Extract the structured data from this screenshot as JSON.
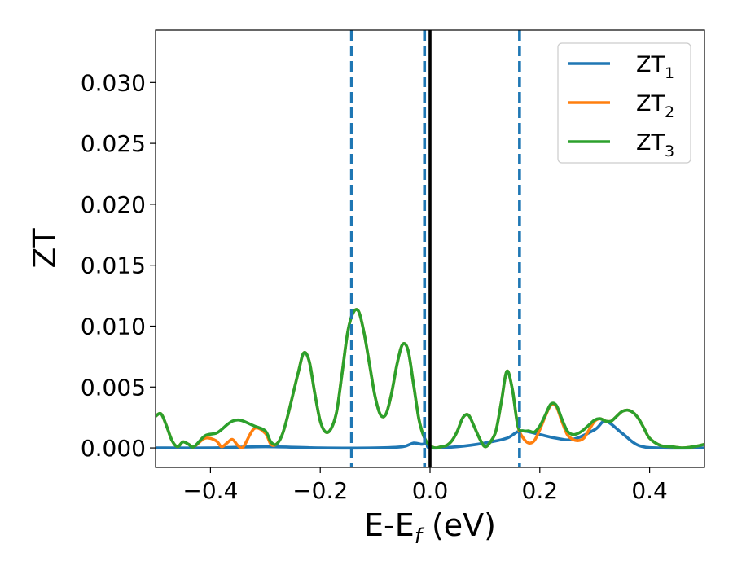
{
  "chart_data": {
    "type": "line",
    "xlabel": {
      "base": "E-E",
      "sub": "f",
      "unit": " (eV)"
    },
    "ylabel": "ZT",
    "xlim": [
      -0.5,
      0.5
    ],
    "ylim": [
      -0.0016,
      0.0343
    ],
    "x_ticks": [
      -0.4,
      -0.2,
      0.0,
      0.2,
      0.4
    ],
    "x_tick_labels": [
      "−0.4",
      "−0.2",
      "0.0",
      "0.2",
      "0.4"
    ],
    "y_ticks": [
      0.0,
      0.005,
      0.01,
      0.015,
      0.02,
      0.025,
      0.03
    ],
    "y_tick_labels": [
      "0.000",
      "0.005",
      "0.010",
      "0.015",
      "0.020",
      "0.025",
      "0.030"
    ],
    "grid": false,
    "legend_position": "top-right",
    "legend_color": "#ffffff",
    "vlines": [
      {
        "x": -0.143,
        "style": "dashed",
        "color": "#1f77b4"
      },
      {
        "x": -0.01,
        "style": "dashed",
        "color": "#1f77b4"
      },
      {
        "x": 0.0,
        "style": "solid",
        "color": "#000000"
      },
      {
        "x": 0.163,
        "style": "dashed",
        "color": "#1f77b4"
      }
    ],
    "series": [
      {
        "name": {
          "base": "ZT",
          "sub": "1"
        },
        "color": "#1f77b4",
        "x": [
          -0.5,
          -0.4,
          -0.3,
          -0.2,
          -0.1,
          -0.05,
          -0.03,
          -0.015,
          -0.005,
          0.0,
          0.05,
          0.1,
          0.14,
          0.165,
          0.2,
          0.23,
          0.26,
          0.3,
          0.32,
          0.35,
          0.38,
          0.42,
          0.5
        ],
        "y": [
          0.0,
          0.0,
          0.0001,
          0.0,
          0.0,
          0.0001,
          0.0004,
          0.0003,
          0.0004,
          0.0,
          0.0001,
          0.0004,
          0.0008,
          0.0014,
          0.0011,
          0.0008,
          0.0007,
          0.0015,
          0.0022,
          0.0012,
          0.0002,
          0.0,
          0.0
        ]
      },
      {
        "name": {
          "base": "ZT",
          "sub": "2"
        },
        "color": "#ff7f0e",
        "x": [
          -0.5,
          -0.49,
          -0.48,
          -0.47,
          -0.46,
          -0.45,
          -0.44,
          -0.43,
          -0.41,
          -0.39,
          -0.38,
          -0.37,
          -0.36,
          -0.35,
          -0.34,
          -0.32,
          -0.3,
          -0.29,
          -0.28,
          -0.27,
          -0.26,
          -0.24,
          -0.23,
          -0.22,
          -0.21,
          -0.2,
          -0.19,
          -0.18,
          -0.17,
          -0.16,
          -0.15,
          -0.14,
          -0.13,
          -0.12,
          -0.11,
          -0.1,
          -0.09,
          -0.08,
          -0.07,
          -0.06,
          -0.05,
          -0.04,
          -0.03,
          -0.02,
          -0.01,
          0.0,
          0.01,
          0.02,
          0.03,
          0.04,
          0.05,
          0.06,
          0.07,
          0.08,
          0.09,
          0.1,
          0.11,
          0.12,
          0.13,
          0.14,
          0.15,
          0.16,
          0.17,
          0.18,
          0.19,
          0.2,
          0.21,
          0.22,
          0.23,
          0.24,
          0.25,
          0.26,
          0.27,
          0.28,
          0.29,
          0.3,
          0.31,
          0.32,
          0.33,
          0.34,
          0.35,
          0.36,
          0.37,
          0.38,
          0.39,
          0.4,
          0.42,
          0.44,
          0.46,
          0.48,
          0.5
        ],
        "y": [
          0.0026,
          0.0028,
          0.0018,
          0.0006,
          0.0001,
          0.0005,
          0.0003,
          0.0001,
          0.0008,
          0.0006,
          0.0001,
          0.0004,
          0.0007,
          0.0002,
          0.0001,
          0.0016,
          0.0012,
          0.0003,
          0.0003,
          0.001,
          0.0025,
          0.0062,
          0.0078,
          0.0071,
          0.0045,
          0.0022,
          0.0013,
          0.0016,
          0.003,
          0.0062,
          0.0095,
          0.0111,
          0.0112,
          0.0094,
          0.0068,
          0.0042,
          0.0027,
          0.0028,
          0.0045,
          0.0069,
          0.0085,
          0.008,
          0.0052,
          0.0023,
          0.0008,
          0.0002,
          0.0,
          0.0001,
          0.0002,
          0.0006,
          0.0014,
          0.0025,
          0.0027,
          0.0018,
          0.0008,
          0.0001,
          0.0005,
          0.0014,
          0.0038,
          0.0063,
          0.0048,
          0.0018,
          0.0008,
          0.0004,
          0.0006,
          0.0015,
          0.0026,
          0.0035,
          0.0034,
          0.0022,
          0.0011,
          0.0007,
          0.0006,
          0.0008,
          0.0015,
          0.0022,
          0.0024,
          0.0022,
          0.0022,
          0.0026,
          0.003,
          0.0031,
          0.0029,
          0.0024,
          0.0016,
          0.0008,
          0.0002,
          0.0001,
          0.0,
          0.0001,
          0.0003
        ]
      },
      {
        "name": {
          "base": "ZT",
          "sub": "3"
        },
        "color": "#2ca02c",
        "x": [
          -0.5,
          -0.49,
          -0.48,
          -0.47,
          -0.46,
          -0.45,
          -0.44,
          -0.43,
          -0.41,
          -0.39,
          -0.38,
          -0.37,
          -0.36,
          -0.35,
          -0.34,
          -0.32,
          -0.3,
          -0.29,
          -0.28,
          -0.27,
          -0.26,
          -0.24,
          -0.23,
          -0.22,
          -0.21,
          -0.2,
          -0.19,
          -0.18,
          -0.17,
          -0.16,
          -0.15,
          -0.14,
          -0.13,
          -0.12,
          -0.11,
          -0.1,
          -0.09,
          -0.08,
          -0.07,
          -0.06,
          -0.05,
          -0.04,
          -0.03,
          -0.02,
          -0.01,
          0.0,
          0.01,
          0.02,
          0.03,
          0.04,
          0.05,
          0.06,
          0.07,
          0.08,
          0.09,
          0.1,
          0.11,
          0.12,
          0.13,
          0.14,
          0.15,
          0.16,
          0.17,
          0.18,
          0.19,
          0.2,
          0.21,
          0.22,
          0.23,
          0.24,
          0.25,
          0.26,
          0.27,
          0.28,
          0.29,
          0.3,
          0.31,
          0.32,
          0.33,
          0.34,
          0.35,
          0.36,
          0.37,
          0.38,
          0.39,
          0.4,
          0.42,
          0.44,
          0.46,
          0.48,
          0.5
        ],
        "y": [
          0.0026,
          0.0028,
          0.0018,
          0.0006,
          0.0001,
          0.0005,
          0.0003,
          0.0001,
          0.001,
          0.0012,
          0.0015,
          0.0019,
          0.0022,
          0.0023,
          0.0022,
          0.0018,
          0.0014,
          0.0005,
          0.0003,
          0.001,
          0.0025,
          0.0062,
          0.0078,
          0.0071,
          0.0045,
          0.0022,
          0.0013,
          0.0016,
          0.003,
          0.0062,
          0.0095,
          0.0111,
          0.0112,
          0.0094,
          0.0068,
          0.0042,
          0.0027,
          0.0028,
          0.0045,
          0.0069,
          0.0085,
          0.008,
          0.0052,
          0.0023,
          0.0008,
          0.0002,
          0.0,
          0.0001,
          0.0002,
          0.0006,
          0.0014,
          0.0025,
          0.0027,
          0.0018,
          0.0008,
          0.0001,
          0.0005,
          0.0014,
          0.0038,
          0.0063,
          0.0048,
          0.0018,
          0.0014,
          0.0014,
          0.0013,
          0.0018,
          0.0027,
          0.0036,
          0.0035,
          0.0024,
          0.0014,
          0.0011,
          0.0012,
          0.0015,
          0.0019,
          0.0023,
          0.0024,
          0.0022,
          0.0022,
          0.0026,
          0.003,
          0.0031,
          0.0029,
          0.0024,
          0.0016,
          0.0008,
          0.0002,
          0.0001,
          0.0,
          0.0001,
          0.0003
        ]
      }
    ]
  }
}
